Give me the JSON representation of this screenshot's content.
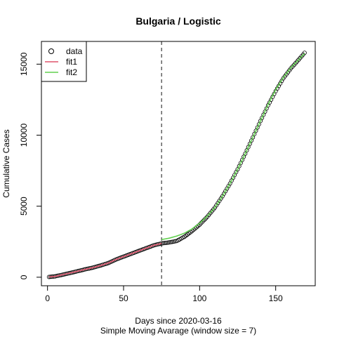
{
  "chart_data": {
    "type": "scatter",
    "title": "Bulgaria / Logistic",
    "xlabel": "Days since 2020-03-16",
    "subtitle": "Simple Moving Avarage (window size = 7)",
    "ylabel": "Cumulative Cases",
    "xlim": [
      -4,
      176
    ],
    "ylim": [
      -600,
      16600
    ],
    "xticks": [
      0,
      50,
      100,
      150
    ],
    "yticks": [
      0,
      5000,
      10000,
      15000
    ],
    "vline": {
      "x": 75,
      "style": "dashed",
      "color": "#555555"
    },
    "legend": {
      "placement": "top-left",
      "entries": [
        {
          "label": "data",
          "kind": "circle",
          "color": "#000000"
        },
        {
          "label": "fit1",
          "kind": "line",
          "color": "#DF536B"
        },
        {
          "label": "fit2",
          "kind": "line",
          "color": "#61D04F"
        }
      ]
    },
    "series": [
      {
        "name": "data",
        "kind": "points",
        "color": "#000000",
        "anchors": [
          [
            1,
            20
          ],
          [
            5,
            60
          ],
          [
            10,
            180
          ],
          [
            15,
            300
          ],
          [
            20,
            430
          ],
          [
            25,
            560
          ],
          [
            30,
            680
          ],
          [
            35,
            830
          ],
          [
            40,
            1000
          ],
          [
            45,
            1250
          ],
          [
            50,
            1450
          ],
          [
            55,
            1650
          ],
          [
            60,
            1850
          ],
          [
            65,
            2050
          ],
          [
            70,
            2250
          ],
          [
            75,
            2380
          ],
          [
            80,
            2450
          ],
          [
            85,
            2550
          ],
          [
            90,
            2850
          ],
          [
            95,
            3250
          ],
          [
            100,
            3700
          ],
          [
            105,
            4250
          ],
          [
            110,
            4900
          ],
          [
            115,
            5700
          ],
          [
            120,
            6600
          ],
          [
            125,
            7600
          ],
          [
            130,
            8700
          ],
          [
            135,
            9850
          ],
          [
            140,
            11000
          ],
          [
            145,
            12100
          ],
          [
            150,
            13100
          ],
          [
            155,
            14000
          ],
          [
            160,
            14700
          ],
          [
            165,
            15300
          ],
          [
            169,
            15800
          ]
        ]
      },
      {
        "name": "fit1",
        "kind": "line",
        "color": "#DF536B",
        "anchors": [
          [
            1,
            20
          ],
          [
            5,
            60
          ],
          [
            10,
            180
          ],
          [
            15,
            300
          ],
          [
            20,
            430
          ],
          [
            25,
            560
          ],
          [
            30,
            680
          ],
          [
            35,
            830
          ],
          [
            40,
            1000
          ],
          [
            45,
            1250
          ],
          [
            50,
            1450
          ],
          [
            55,
            1650
          ],
          [
            60,
            1850
          ],
          [
            65,
            2050
          ],
          [
            70,
            2250
          ],
          [
            75,
            2380
          ]
        ]
      },
      {
        "name": "fit2",
        "kind": "line",
        "color": "#61D04F",
        "anchors": [
          [
            75,
            2650
          ],
          [
            80,
            2750
          ],
          [
            85,
            2900
          ],
          [
            90,
            3100
          ],
          [
            95,
            3400
          ],
          [
            100,
            3800
          ],
          [
            105,
            4300
          ],
          [
            110,
            4900
          ],
          [
            115,
            5700
          ],
          [
            120,
            6600
          ],
          [
            125,
            7600
          ],
          [
            130,
            8700
          ],
          [
            135,
            9850
          ],
          [
            140,
            11000
          ],
          [
            145,
            12150
          ],
          [
            150,
            13200
          ],
          [
            155,
            14050
          ],
          [
            160,
            14750
          ],
          [
            165,
            15300
          ],
          [
            169,
            15750
          ]
        ]
      }
    ]
  }
}
